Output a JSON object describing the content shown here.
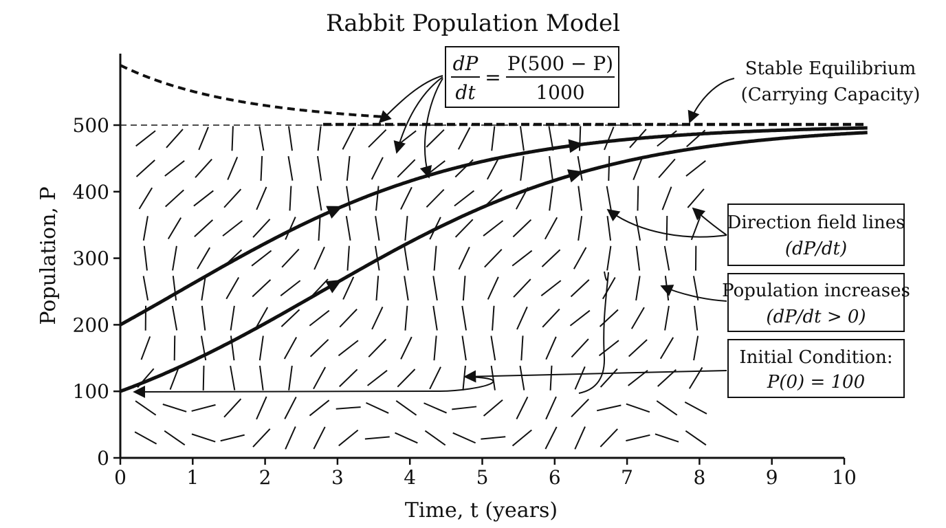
{
  "chart_data": {
    "type": "line",
    "title": "Rabbit Population Model",
    "xlabel": "Time, t (years)",
    "ylabel": "Population, P",
    "xlim": [
      0,
      10.3
    ],
    "ylim": [
      0,
      600
    ],
    "x_ticks": [
      0,
      1,
      2,
      3,
      4,
      5,
      6,
      7,
      8,
      9,
      10
    ],
    "y_ticks": [
      0,
      100,
      200,
      300,
      400,
      500
    ],
    "grid": false,
    "equation": {
      "lhs_num": "dP",
      "lhs_den": "dt",
      "rhs_num": "P(500 − P)",
      "rhs_den": "1000"
    },
    "equilibrium": {
      "P": 500
    },
    "series": [
      {
        "initial": {
          "t": 0,
          "P": 200
        },
        "t_end": 10.3,
        "style": "solid",
        "rate_divisor": 1000
      },
      {
        "initial": {
          "t": 0,
          "P": 100
        },
        "t_end": 10.3,
        "style": "solid",
        "rate_divisor": 1000
      },
      {
        "initial": {
          "t": 0,
          "P": 590
        },
        "t_end": 3.7,
        "style": "dashed",
        "rate_divisor": 1000
      }
    ],
    "annotations": {
      "stable_line1": "Stable Equilibrium",
      "stable_line2": "(Carrying Capacity)",
      "field_line1": "Direction field lines",
      "field_line2": "(dP/dt)",
      "increase_line1": "Population increases",
      "increase_line2": "(dP/dt > 0)",
      "initial_line1": "Initial Condition:",
      "initial_line2": "P(0) = 100"
    }
  }
}
